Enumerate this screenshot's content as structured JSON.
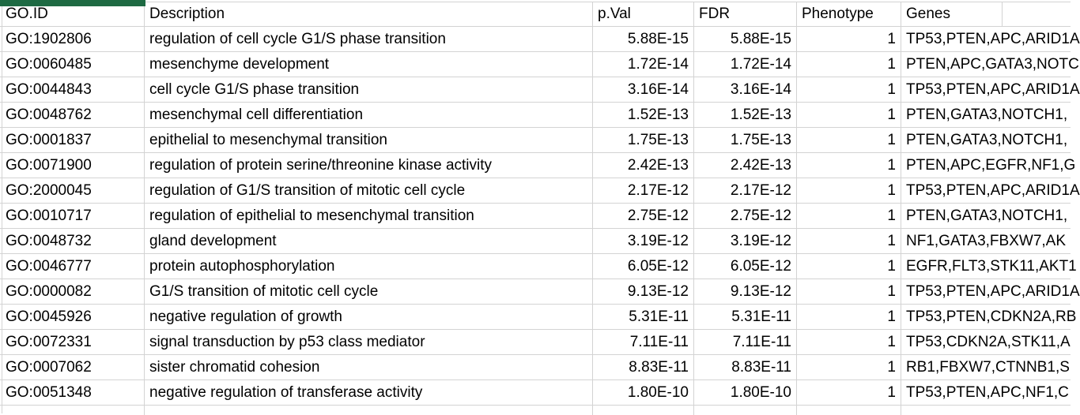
{
  "colors": {
    "selection_green": "#1e6a43",
    "gridline": "#d3d3d3",
    "text": "#000000",
    "background": "#ffffff"
  },
  "table": {
    "headers": [
      "GO.ID",
      "Description",
      "p.Val",
      "FDR",
      "Phenotype",
      "Genes"
    ],
    "rows": [
      {
        "goid": "GO:1902806",
        "description": "regulation of cell cycle G1/S phase transition",
        "pval": "5.88E-15",
        "fdr": "5.88E-15",
        "phenotype": "1",
        "genes": "TP53,PTEN,APC,ARID1A"
      },
      {
        "goid": "GO:0060485",
        "description": "mesenchyme development",
        "pval": "1.72E-14",
        "fdr": "1.72E-14",
        "phenotype": "1",
        "genes": "PTEN,APC,GATA3,NOTC"
      },
      {
        "goid": "GO:0044843",
        "description": "cell cycle G1/S phase transition",
        "pval": "3.16E-14",
        "fdr": "3.16E-14",
        "phenotype": "1",
        "genes": "TP53,PTEN,APC,ARID1A"
      },
      {
        "goid": "GO:0048762",
        "description": "mesenchymal cell differentiation",
        "pval": "1.52E-13",
        "fdr": "1.52E-13",
        "phenotype": "1",
        "genes": "PTEN,GATA3,NOTCH1,"
      },
      {
        "goid": "GO:0001837",
        "description": "epithelial to mesenchymal transition",
        "pval": "1.75E-13",
        "fdr": "1.75E-13",
        "phenotype": "1",
        "genes": "PTEN,GATA3,NOTCH1,"
      },
      {
        "goid": "GO:0071900",
        "description": "regulation of protein serine/threonine kinase activity",
        "pval": "2.42E-13",
        "fdr": "2.42E-13",
        "phenotype": "1",
        "genes": "PTEN,APC,EGFR,NF1,G"
      },
      {
        "goid": "GO:2000045",
        "description": "regulation of G1/S transition of mitotic cell cycle",
        "pval": "2.17E-12",
        "fdr": "2.17E-12",
        "phenotype": "1",
        "genes": "TP53,PTEN,APC,ARID1A"
      },
      {
        "goid": "GO:0010717",
        "description": "regulation of epithelial to mesenchymal transition",
        "pval": "2.75E-12",
        "fdr": "2.75E-12",
        "phenotype": "1",
        "genes": "PTEN,GATA3,NOTCH1,"
      },
      {
        "goid": "GO:0048732",
        "description": "gland development",
        "pval": "3.19E-12",
        "fdr": "3.19E-12",
        "phenotype": "1",
        "genes": "NF1,GATA3,FBXW7,AK"
      },
      {
        "goid": "GO:0046777",
        "description": "protein autophosphorylation",
        "pval": "6.05E-12",
        "fdr": "6.05E-12",
        "phenotype": "1",
        "genes": "EGFR,FLT3,STK11,AKT1"
      },
      {
        "goid": "GO:0000082",
        "description": "G1/S transition of mitotic cell cycle",
        "pval": "9.13E-12",
        "fdr": "9.13E-12",
        "phenotype": "1",
        "genes": "TP53,PTEN,APC,ARID1A"
      },
      {
        "goid": "GO:0045926",
        "description": "negative regulation of growth",
        "pval": "5.31E-11",
        "fdr": "5.31E-11",
        "phenotype": "1",
        "genes": "TP53,PTEN,CDKN2A,RB"
      },
      {
        "goid": "GO:0072331",
        "description": "signal transduction by p53 class mediator",
        "pval": "7.11E-11",
        "fdr": "7.11E-11",
        "phenotype": "1",
        "genes": "TP53,CDKN2A,STK11,A"
      },
      {
        "goid": "GO:0007062",
        "description": "sister chromatid cohesion",
        "pval": "8.83E-11",
        "fdr": "8.83E-11",
        "phenotype": "1",
        "genes": "RB1,FBXW7,CTNNB1,S"
      },
      {
        "goid": "GO:0051348",
        "description": "negative regulation of transferase activity",
        "pval": "1.80E-10",
        "fdr": "1.80E-10",
        "phenotype": "1",
        "genes": "TP53,PTEN,APC,NF1,C"
      }
    ]
  }
}
